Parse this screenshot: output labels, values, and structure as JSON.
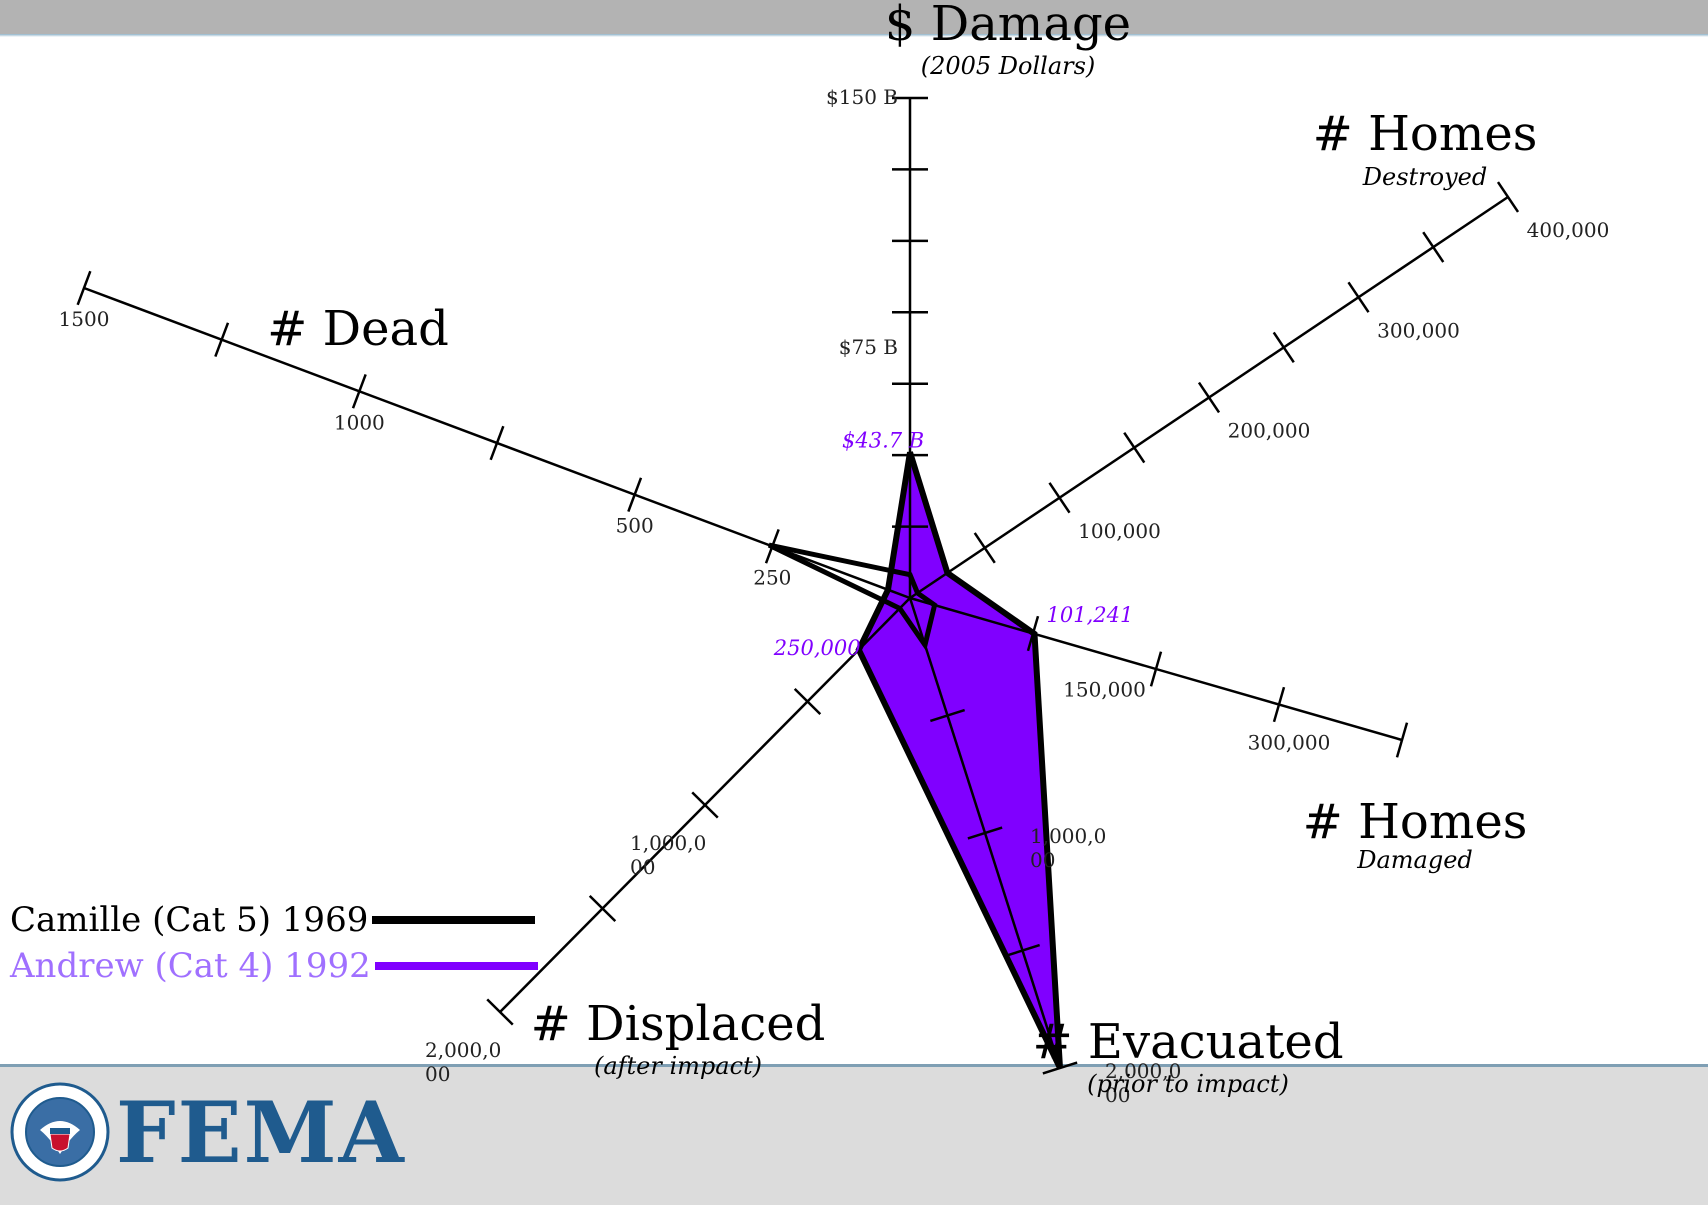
{
  "colors": {
    "camille": "#000000",
    "andrew": "#8000ff",
    "andrew_label": "#a070ff",
    "fema_blue": "#1f5b8e"
  },
  "logo": {
    "text": "FEMA",
    "seal_icon": "dhs-seal-icon"
  },
  "chart_data": {
    "type": "radar",
    "axes": [
      {
        "id": "damage",
        "title": "$ Damage",
        "subtitle": "(2005 Dollars)",
        "max": 150,
        "unit": "B",
        "tick_labels": [
          "$150 B",
          "$75 B"
        ],
        "tick_values": [
          150,
          75
        ],
        "minor_ticks": 7
      },
      {
        "id": "homes_destroyed",
        "title": "# Homes",
        "subtitle": "Destroyed",
        "max": 400000,
        "tick_labels": [
          "400,000",
          "300,000",
          "200,000",
          "100,000"
        ],
        "tick_values": [
          400000,
          300000,
          200000,
          100000
        ],
        "minor_ticks": 8
      },
      {
        "id": "homes_damaged",
        "title": "# Homes",
        "subtitle": "Damaged",
        "max": 400000,
        "tick_labels": [
          "300,000",
          "150,000"
        ],
        "tick_values": [
          300000,
          150000
        ],
        "minor_ticks": 4
      },
      {
        "id": "evacuated",
        "title": "# Evacuated",
        "subtitle": "(prior to impact)",
        "max": 2000000,
        "tick_labels": [
          "2,000,0\n00",
          "1,000,0\n00"
        ],
        "tick_values": [
          2000000,
          1000000
        ],
        "minor_ticks": 4
      },
      {
        "id": "displaced",
        "title": "# Displaced",
        "subtitle": "(after impact)",
        "max": 2000000,
        "tick_labels": [
          "2,000,0\n00",
          "1,000,0\n00",
          "250,000"
        ],
        "tick_values": [
          2000000,
          1000000,
          250000
        ],
        "minor_ticks": 4
      },
      {
        "id": "dead",
        "title": "# Dead",
        "subtitle": "",
        "max": 1500,
        "tick_labels": [
          "1500",
          "1000",
          "500",
          "250"
        ],
        "tick_values": [
          1500,
          1000,
          500,
          250
        ],
        "minor_ticks": 6
      }
    ],
    "series": [
      {
        "name": "Camille (Cat 5) 1969",
        "values": {
          "damage": 7,
          "homes_destroyed": 5000,
          "homes_damaged": 20000,
          "evacuated": 200000,
          "displaced": 50000,
          "dead": 256
        }
      },
      {
        "name": "Andrew (Cat 4) 1992",
        "values": {
          "damage": 43.7,
          "homes_destroyed": 25000,
          "homes_damaged": 101241,
          "evacuated": 2000000,
          "displaced": 250000,
          "dead": 40
        }
      }
    ],
    "annotations": [
      {
        "text": "$43.7 B",
        "axis": "damage",
        "series": "Andrew (Cat 4) 1992"
      },
      {
        "text": "101,241",
        "axis": "homes_damaged",
        "series": "Andrew (Cat 4) 1992"
      },
      {
        "text": "250,000",
        "axis": "displaced",
        "series": "Andrew (Cat 4) 1992"
      }
    ]
  }
}
